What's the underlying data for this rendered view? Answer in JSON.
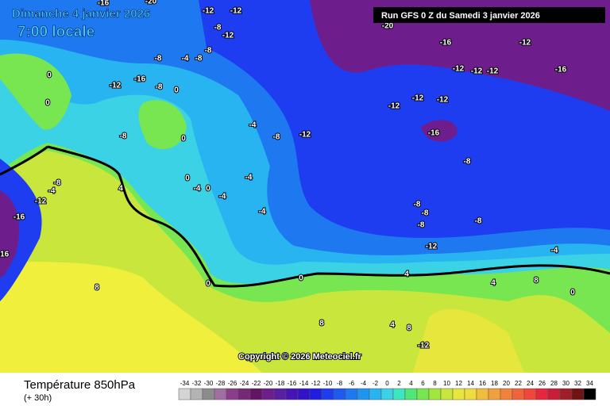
{
  "header": {
    "date": "Dimanche 4 janvier 2026",
    "time": "7:00 locale",
    "run": "Run GFS 0 Z du Samedi 3 janvier 2026"
  },
  "copyright": "Copyright © 2026 Meteociel.fr",
  "footer": {
    "title": "Température 850hPa",
    "lead": "(+ 30h)"
  },
  "legend": {
    "values": [
      -34,
      -32,
      -30,
      -28,
      -26,
      -24,
      -22,
      -20,
      -18,
      -16,
      -14,
      -12,
      -10,
      -8,
      -6,
      -4,
      -2,
      0,
      2,
      4,
      6,
      8,
      10,
      12,
      14,
      16,
      18,
      20,
      22,
      24,
      26,
      28,
      30,
      32,
      34
    ],
    "colors": [
      "#d4d4d4",
      "#b4b4b4",
      "#8c8c8c",
      "#a06ea0",
      "#8c3c8c",
      "#782878",
      "#641464",
      "#6e1e8c",
      "#5a1ea0",
      "#4614b4",
      "#3214c8",
      "#1e1edc",
      "#1e3cf0",
      "#1e5af0",
      "#1e78f0",
      "#1e96f0",
      "#28b4f0",
      "#3cd2e6",
      "#3ce6be",
      "#50e678",
      "#78e650",
      "#a0e63c",
      "#c8e63c",
      "#e6e63c",
      "#f0dc3c",
      "#f0be3c",
      "#f0a03c",
      "#f0823c",
      "#f0643c",
      "#f0463c",
      "#e6283c",
      "#c81e3c",
      "#a01e28",
      "#6e1414",
      "#000000"
    ]
  },
  "map_labels": [
    "-16",
    "-20",
    "-12",
    "-12",
    "-8",
    "-12",
    "-20",
    "-16",
    "-12",
    "-8",
    "-4",
    "-8",
    "-8",
    "-12",
    "-16",
    "-8",
    "0",
    "0",
    "0",
    "-12",
    "-12",
    "-12",
    "-16",
    "-12",
    "-12",
    "-12",
    "-4",
    "-12",
    "-16",
    "-8",
    "0",
    "-8",
    "-8",
    "-4",
    "0",
    "-4",
    "0",
    "-4",
    "4",
    "-4",
    "-8",
    "-12",
    "-16",
    "-16",
    "-4",
    "-8",
    "-8",
    "-8",
    "-8",
    "-12",
    "-4",
    "8",
    "0",
    "0",
    "4",
    "4",
    "8",
    "0",
    "8",
    "4",
    "8",
    "-12",
    "8"
  ]
}
